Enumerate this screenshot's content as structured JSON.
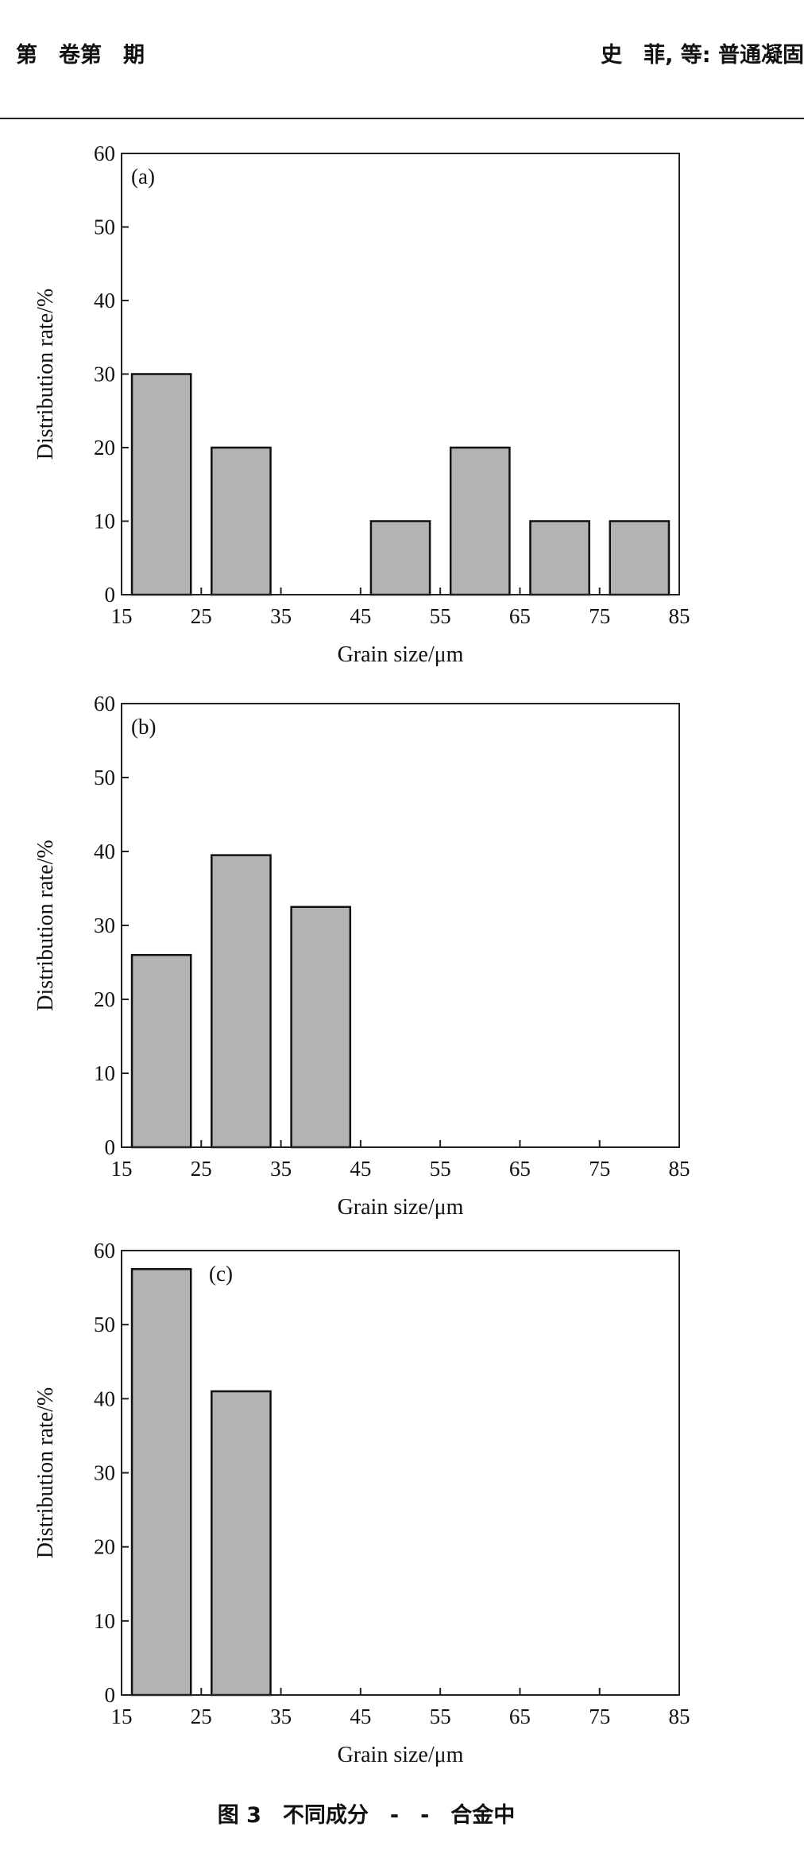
{
  "header": {
    "left": "第　卷第　期",
    "right": "史　菲, 等: 普通凝固"
  },
  "caption": "图 3　不同成分　-　-　合金中",
  "chart_data": [
    {
      "type": "histogram",
      "label": "(a)",
      "xlabel": "Grain size/μm",
      "ylabel": "Distribution rate/%",
      "bins": [
        15,
        25,
        35,
        45,
        55,
        65,
        75,
        85
      ],
      "values": [
        30,
        20,
        0,
        10,
        20,
        10,
        10
      ],
      "color": "#b3b3b3",
      "xlim": [
        15,
        85
      ],
      "xticks": [
        15,
        25,
        35,
        45,
        55,
        65,
        75,
        85
      ],
      "ylim": [
        0,
        60
      ],
      "yticks": [
        0,
        10,
        20,
        30,
        40,
        50,
        60
      ]
    },
    {
      "type": "histogram",
      "label": "(b)",
      "xlabel": "Grain size/μm",
      "ylabel": "Distribution rate/%",
      "bins": [
        15,
        25,
        35,
        45,
        55,
        65,
        75,
        85
      ],
      "values": [
        26,
        39.5,
        32.5,
        0,
        0,
        0,
        0
      ],
      "color": "#b3b3b3",
      "xlim": [
        15,
        85
      ],
      "xticks": [
        15,
        25,
        35,
        45,
        55,
        65,
        75,
        85
      ],
      "ylim": [
        0,
        60
      ],
      "yticks": [
        0,
        10,
        20,
        30,
        40,
        50,
        60
      ]
    },
    {
      "type": "histogram",
      "label": "(c)",
      "xlabel": "Grain size/μm",
      "ylabel": "Distribution rate/%",
      "bins": [
        15,
        25,
        35,
        45,
        55,
        65,
        75,
        85
      ],
      "values": [
        57.5,
        41,
        0,
        0,
        0,
        0,
        0
      ],
      "color": "#b3b3b3",
      "xlim": [
        15,
        85
      ],
      "xticks": [
        15,
        25,
        35,
        45,
        55,
        65,
        75,
        85
      ],
      "ylim": [
        0,
        60
      ],
      "yticks": [
        0,
        10,
        20,
        30,
        40,
        50,
        60
      ]
    }
  ]
}
